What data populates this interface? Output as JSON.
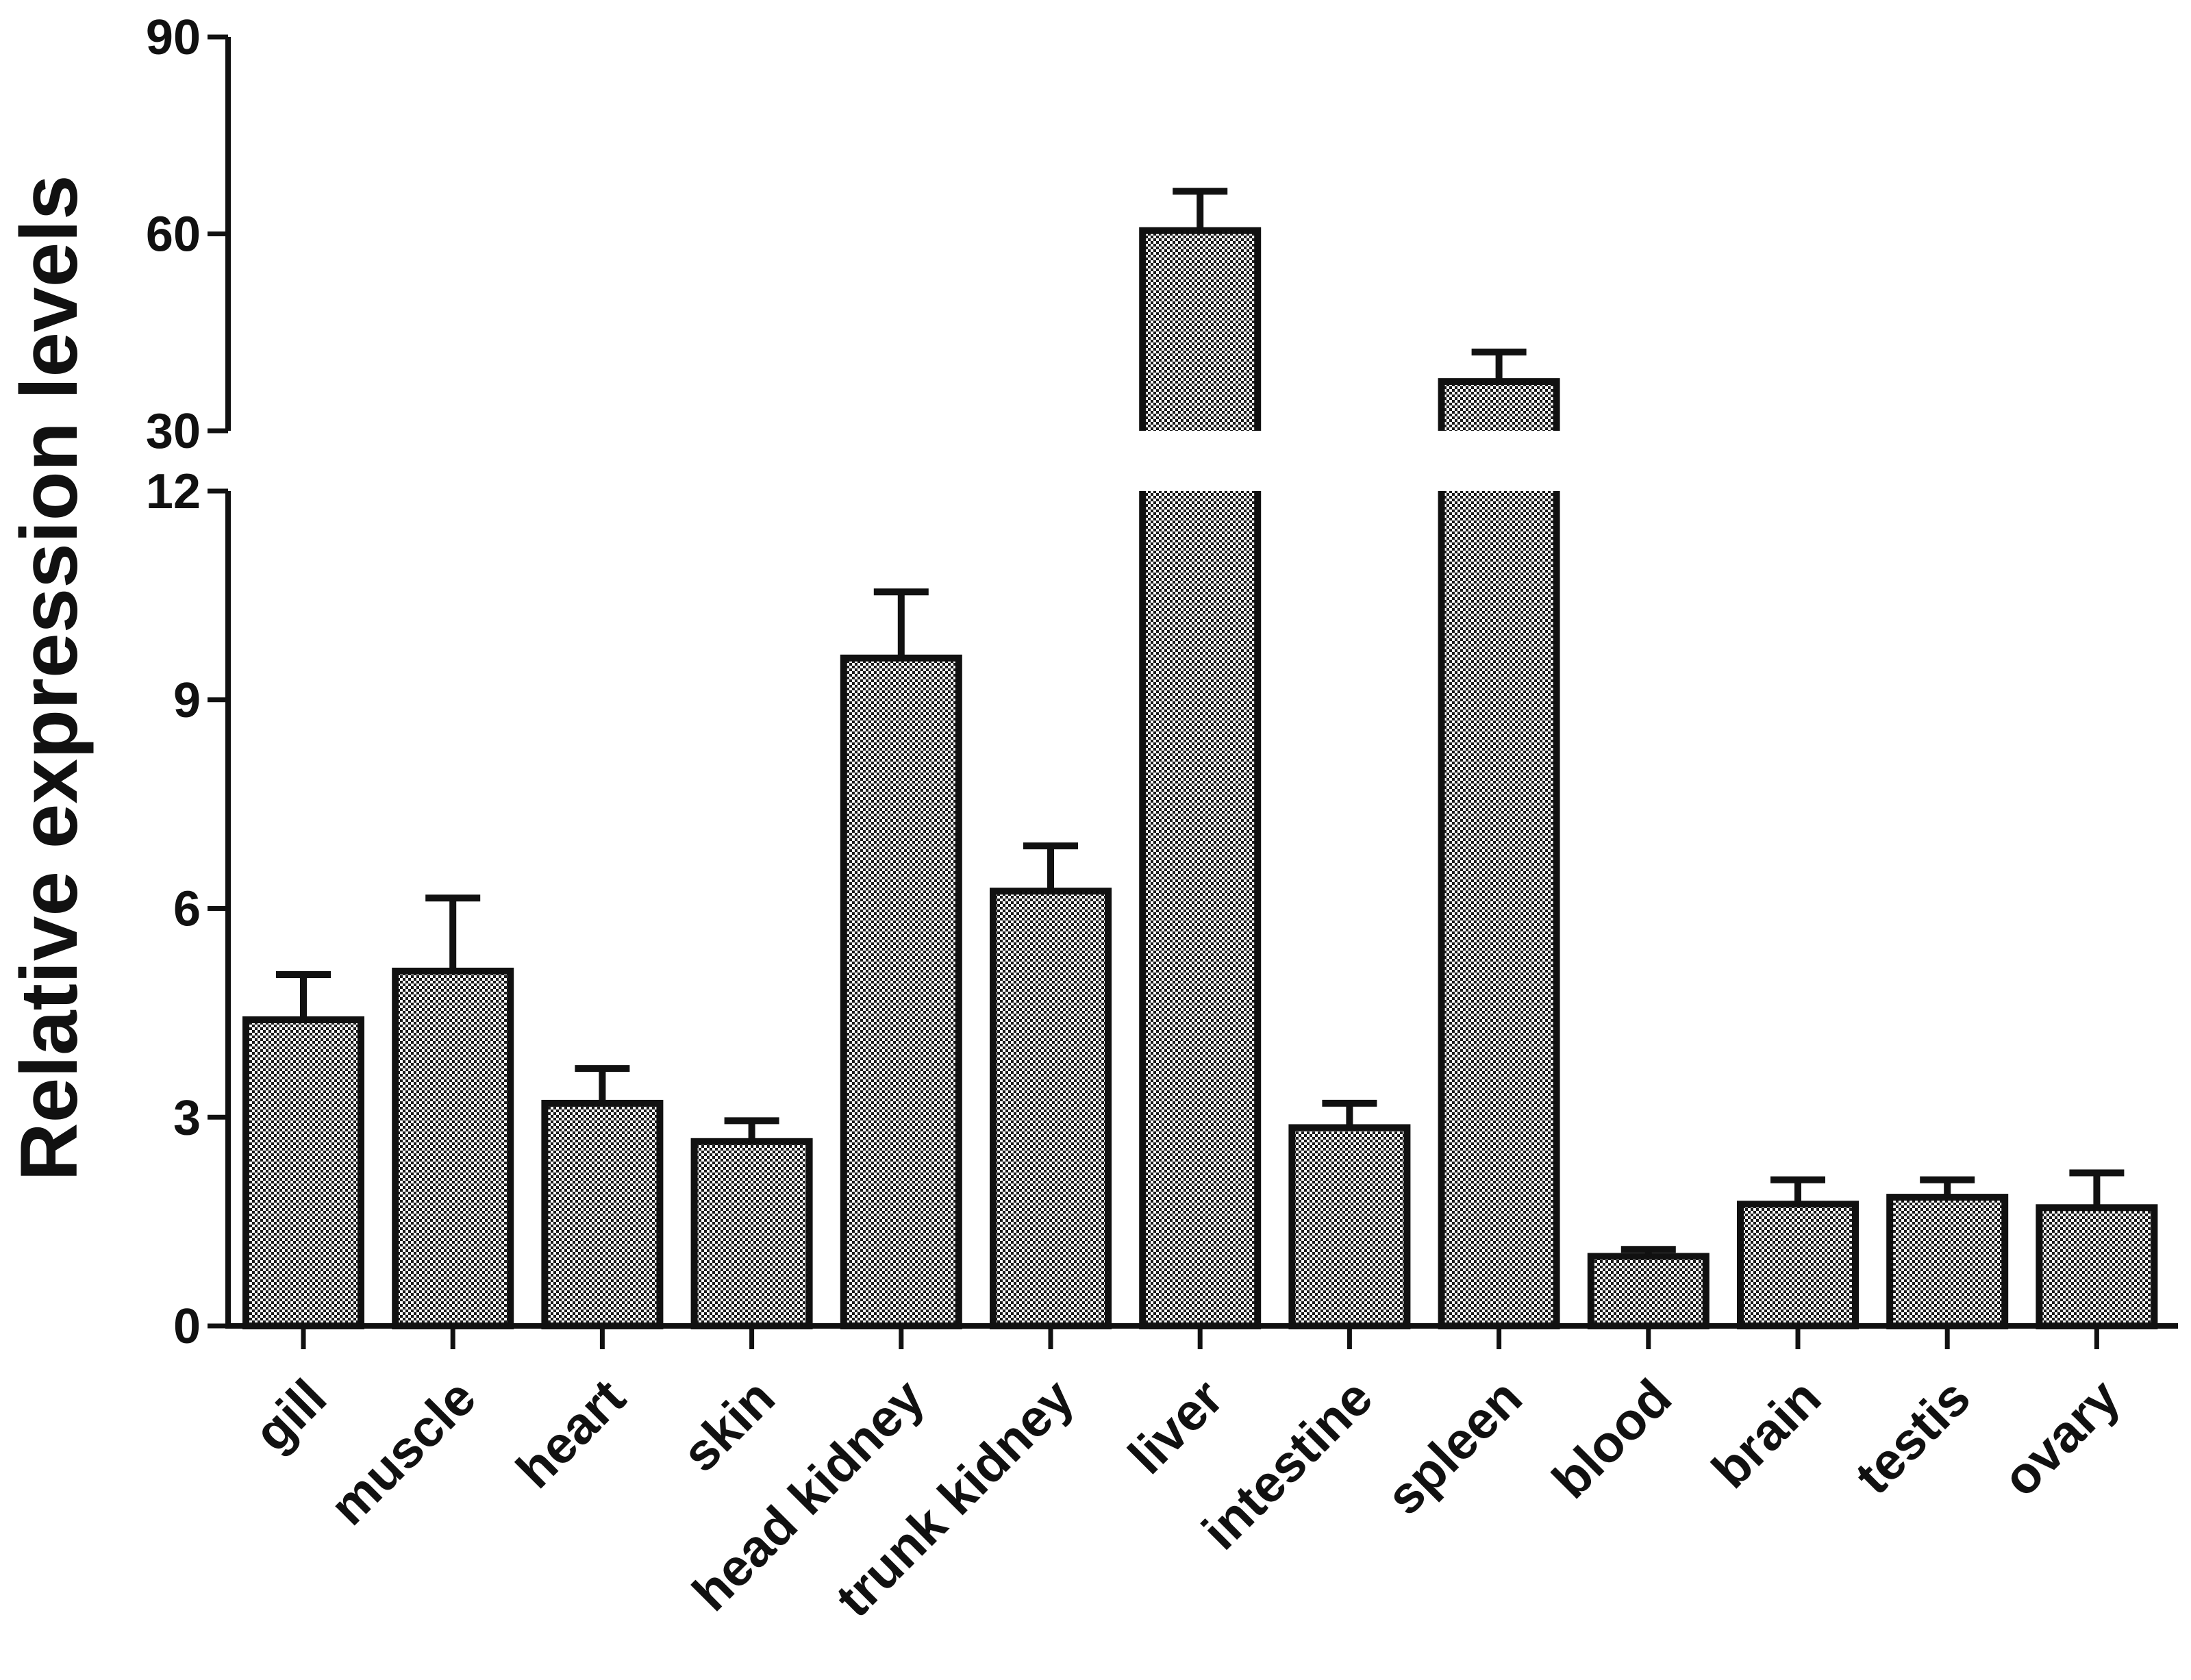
{
  "chart_data": {
    "type": "bar",
    "title": "",
    "xlabel": "",
    "ylabel": "Relative expression levels",
    "categories": [
      "gill",
      "muscle",
      "heart",
      "skin",
      "head kidney",
      "trunk kidney",
      "liver",
      "intestine",
      "spleen",
      "blood",
      "brain",
      "testis",
      "ovary"
    ],
    "values": [
      4.4,
      5.1,
      3.2,
      2.65,
      9.6,
      6.25,
      60.5,
      2.85,
      37.5,
      1.0,
      1.75,
      1.85,
      1.7
    ],
    "errors": [
      0.65,
      1.05,
      0.5,
      0.3,
      0.95,
      0.65,
      6.0,
      0.35,
      4.5,
      0.1,
      0.35,
      0.25,
      0.5
    ],
    "axis_break": {
      "lower_range": [
        0,
        12
      ],
      "upper_range": [
        30,
        90
      ]
    },
    "yticks_lower": [
      "0",
      "3",
      "6",
      "9",
      "12"
    ],
    "yticks_upper": [
      "30",
      "60",
      "90"
    ],
    "grid": false,
    "legend": "none",
    "bar_fill": "checkered",
    "colors": {
      "bar_stroke": "#111111",
      "pattern_dark": "#1a1a1a",
      "pattern_light": "#ffffff"
    }
  }
}
